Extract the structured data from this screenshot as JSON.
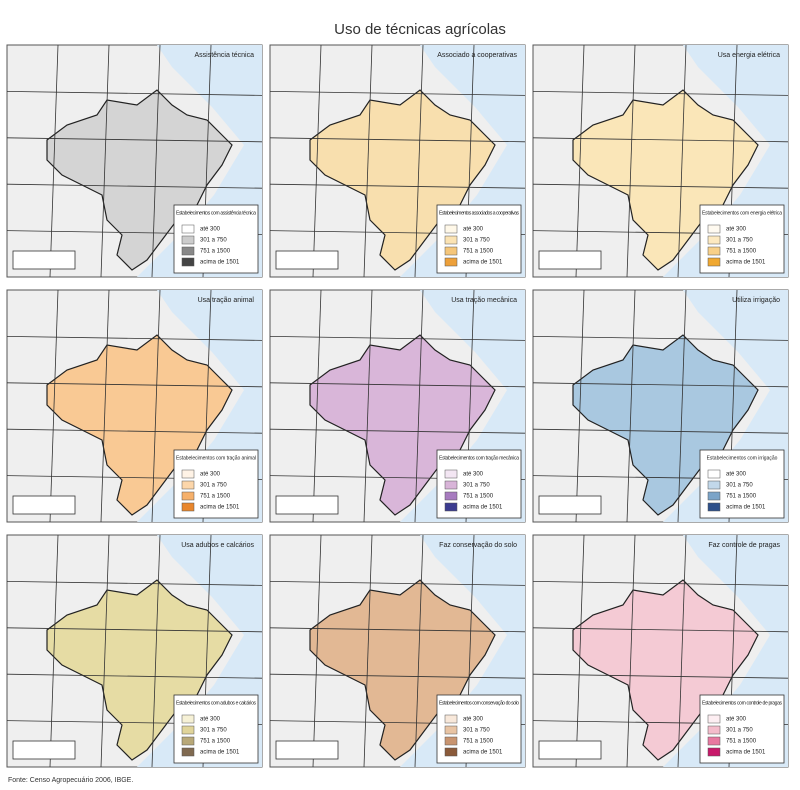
{
  "header": {
    "title": "Uso de técnicas agrícolas"
  },
  "panels": [
    {
      "title": "Assistência técnica",
      "fill": "#d4d4d4",
      "legend_title": "Estabelecimentos com assistência técnica",
      "legend": [
        {
          "label": "até 300",
          "color": "#ffffff"
        },
        {
          "label": "301 a 750",
          "color": "#cccccc"
        },
        {
          "label": "751 a 1500",
          "color": "#888888"
        },
        {
          "label": "acima de 1501",
          "color": "#444444"
        }
      ]
    },
    {
      "title": "Associado a cooperativas",
      "fill": "#f8dfae",
      "legend_title": "Estabelecimentos associados a cooperativas",
      "legend": [
        {
          "label": "até 300",
          "color": "#fff8e8"
        },
        {
          "label": "301 a 750",
          "color": "#fbe3b3"
        },
        {
          "label": "751 a 1500",
          "color": "#f5c67a"
        },
        {
          "label": "acima de 1501",
          "color": "#eda03a"
        }
      ]
    },
    {
      "title": "Usa energia elétrica",
      "fill": "#fae6b8",
      "legend_title": "Estabelecimentos com energia elétrica",
      "legend": [
        {
          "label": "até 300",
          "color": "#fffaf0"
        },
        {
          "label": "301 a 750",
          "color": "#fde9c0"
        },
        {
          "label": "751 a 1500",
          "color": "#f8d088"
        },
        {
          "label": "acima de 1501",
          "color": "#f0a830"
        }
      ]
    },
    {
      "title": "Usa tração animal",
      "fill": "#f9c994",
      "legend_title": "Estabelecimentos com tração animal",
      "legend": [
        {
          "label": "até 300",
          "color": "#fff3e6"
        },
        {
          "label": "301 a 750",
          "color": "#fcd6aa"
        },
        {
          "label": "751 a 1500",
          "color": "#f6b06a"
        },
        {
          "label": "acima de 1501",
          "color": "#e8862c"
        }
      ]
    },
    {
      "title": "Usa tração mecânica",
      "fill": "#d9b6d9",
      "legend_title": "Estabelecimentos com tração mecânica",
      "legend": [
        {
          "label": "até 300",
          "color": "#f3e6f3"
        },
        {
          "label": "301 a 750",
          "color": "#d8b4d8"
        },
        {
          "label": "751 a 1500",
          "color": "#a77bbf"
        },
        {
          "label": "acima de 1501",
          "color": "#3b3b8f"
        }
      ]
    },
    {
      "title": "Utiliza irrigação",
      "fill": "#a9c8e0",
      "legend_title": "Estabelecimentos com irrigação",
      "legend": [
        {
          "label": "até 300",
          "color": "#ffffff"
        },
        {
          "label": "301 a 750",
          "color": "#c2d8ea"
        },
        {
          "label": "751 a 1500",
          "color": "#7ba4c8"
        },
        {
          "label": "acima de 1501",
          "color": "#2d4f8a"
        }
      ]
    },
    {
      "title": "Usa adubos e calcários",
      "fill": "#e6dca4",
      "legend_title": "Estabelecimentos com adubos e calcários",
      "legend": [
        {
          "label": "até 300",
          "color": "#f6f1d6"
        },
        {
          "label": "301 a 750",
          "color": "#e0d49a"
        },
        {
          "label": "751 a 1500",
          "color": "#b8a878"
        },
        {
          "label": "acima de 1501",
          "color": "#806a50"
        }
      ]
    },
    {
      "title": "Faz conservação do solo",
      "fill": "#e2b894",
      "legend_title": "Estabelecimentos com conservação do solo",
      "legend": [
        {
          "label": "até 300",
          "color": "#f8e8da"
        },
        {
          "label": "301 a 750",
          "color": "#e8c4a4"
        },
        {
          "label": "751 a 1500",
          "color": "#c89470"
        },
        {
          "label": "acima de 1501",
          "color": "#8a5a3a"
        }
      ]
    },
    {
      "title": "Faz controle de pragas",
      "fill": "#f4cad4",
      "legend_title": "Estabelecimentos com controle de pragas",
      "legend": [
        {
          "label": "até 300",
          "color": "#fdeef2"
        },
        {
          "label": "301 a 750",
          "color": "#f4bccb"
        },
        {
          "label": "751 a 1500",
          "color": "#e878a0"
        },
        {
          "label": "acima de 1501",
          "color": "#c8186a"
        }
      ]
    }
  ],
  "footer": {
    "source": "Fonte: Censo Agropecuário 2006, IBGE."
  }
}
